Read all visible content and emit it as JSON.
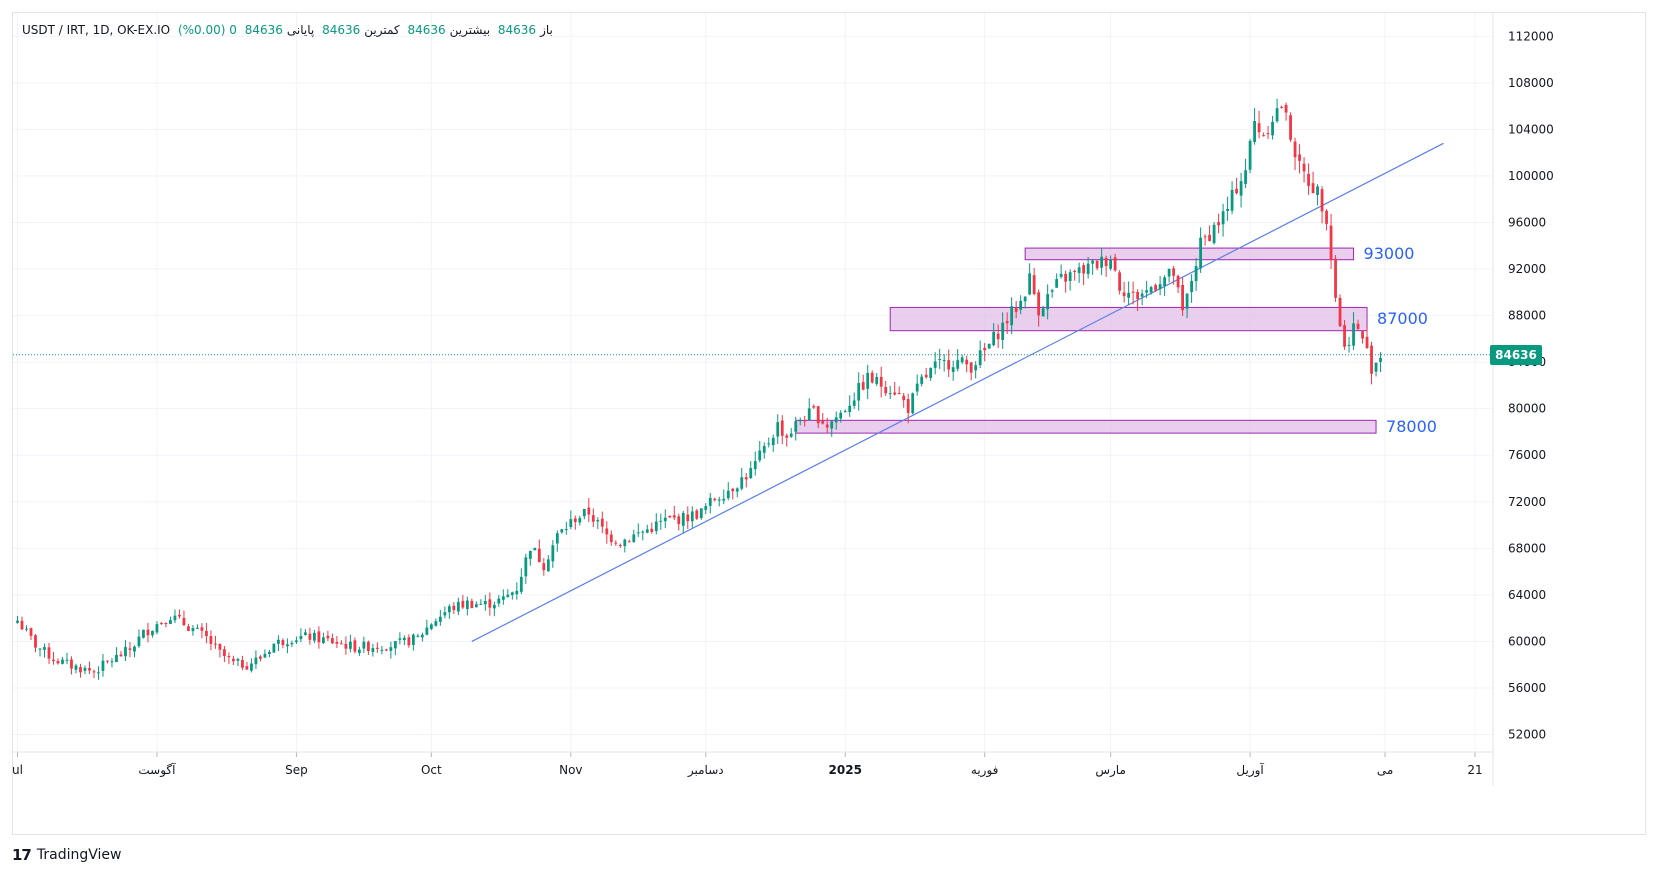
{
  "header": {
    "symbol": "USDT / IRT, 1D, OK-EX.IO",
    "open_label": "باز",
    "open_value": "84636",
    "high_label": "بیشترین",
    "high_value": "84636",
    "low_label": "کمترین",
    "low_value": "84636",
    "close_label": "پایانی",
    "close_value": "84636",
    "change": "0 (0.00%)"
  },
  "last_price_label": "84636",
  "brand": {
    "name": "TradingView"
  },
  "colors": {
    "up": "#089981",
    "down": "#f23645",
    "trend": "#5b7fe8",
    "zone_fill": "#e1bee7",
    "zone_border": "#9c27b0",
    "zone_label": "#2962ff"
  },
  "chart_data": {
    "type": "candlestick",
    "y_ticks": [
      52000,
      56000,
      60000,
      64000,
      68000,
      72000,
      76000,
      80000,
      84000,
      88000,
      92000,
      96000,
      100000,
      104000,
      108000,
      112000
    ],
    "y_tick_labels": [
      "52000",
      "56000",
      "60000",
      "64000",
      "68000",
      "72000",
      "76000",
      "80000",
      "84000",
      "88000",
      "92000",
      "96000",
      "100000",
      "104000",
      "108000",
      "112000"
    ],
    "x_ticks": [
      {
        "label": "ul",
        "day": 0
      },
      {
        "label": "آگوست",
        "day": 31
      },
      {
        "label": "Sep",
        "day": 62
      },
      {
        "label": "Oct",
        "day": 92
      },
      {
        "label": "Nov",
        "day": 123
      },
      {
        "label": "دسامبر",
        "day": 153
      },
      {
        "label": "2025",
        "day": 184,
        "bold": true
      },
      {
        "label": "فوریه",
        "day": 215
      },
      {
        "label": "مارس",
        "day": 243
      },
      {
        "label": "آوریل",
        "day": 274
      },
      {
        "label": "می",
        "day": 304
      },
      {
        "label": "21",
        "day": 324
      }
    ],
    "ylim": [
      50500,
      114000
    ],
    "xlim": [
      -1,
      328
    ],
    "last_price": 84636,
    "zones": [
      {
        "label": "93000",
        "from_day": 224,
        "to_day": 297,
        "low": 92800,
        "high": 93800
      },
      {
        "label": "87000",
        "from_day": 194,
        "to_day": 300,
        "low": 86700,
        "high": 88700
      },
      {
        "label": "78000",
        "from_day": 173,
        "to_day": 302,
        "low": 77900,
        "high": 79000
      }
    ],
    "trendline": {
      "from_day": 101,
      "from_price": 60000,
      "to_day": 317,
      "to_price": 102800
    },
    "anchors": [
      [
        0,
        61800
      ],
      [
        4,
        59700
      ],
      [
        8,
        58500
      ],
      [
        12,
        57900
      ],
      [
        17,
        57400
      ],
      [
        20,
        58200
      ],
      [
        25,
        59300
      ],
      [
        28,
        60700
      ],
      [
        31,
        61500
      ],
      [
        34,
        62200
      ],
      [
        38,
        61300
      ],
      [
        42,
        60300
      ],
      [
        45,
        59000
      ],
      [
        48,
        58100
      ],
      [
        51,
        58000
      ],
      [
        54,
        58600
      ],
      [
        57,
        59800
      ],
      [
        61,
        60300
      ],
      [
        65,
        60400
      ],
      [
        70,
        60000
      ],
      [
        75,
        59500
      ],
      [
        79,
        59600
      ],
      [
        84,
        59700
      ],
      [
        89,
        60300
      ],
      [
        92,
        61600
      ],
      [
        96,
        62800
      ],
      [
        100,
        63300
      ],
      [
        104,
        63200
      ],
      [
        108,
        63600
      ],
      [
        111,
        64600
      ],
      [
        114,
        68200
      ],
      [
        117,
        66600
      ],
      [
        120,
        69100
      ],
      [
        124,
        70600
      ],
      [
        127,
        71100
      ],
      [
        129,
        70100
      ],
      [
        131,
        69100
      ],
      [
        134,
        68600
      ],
      [
        137,
        69100
      ],
      [
        140,
        69600
      ],
      [
        144,
        70400
      ],
      [
        148,
        70600
      ],
      [
        152,
        71100
      ],
      [
        155,
        72300
      ],
      [
        159,
        73300
      ],
      [
        163,
        74600
      ],
      [
        166,
        76500
      ],
      [
        169,
        78600
      ],
      [
        171,
        77600
      ],
      [
        174,
        79100
      ],
      [
        177,
        79700
      ],
      [
        180,
        78600
      ],
      [
        183,
        79600
      ],
      [
        186,
        81100
      ],
      [
        189,
        82600
      ],
      [
        192,
        82100
      ],
      [
        195,
        81600
      ],
      [
        198,
        80100
      ],
      [
        201,
        82400
      ],
      [
        204,
        83600
      ],
      [
        208,
        84100
      ],
      [
        212,
        83700
      ],
      [
        215,
        84900
      ],
      [
        218,
        86600
      ],
      [
        221,
        88200
      ],
      [
        223,
        89200
      ],
      [
        225,
        91200
      ],
      [
        227,
        88600
      ],
      [
        229,
        89600
      ],
      [
        232,
        91100
      ],
      [
        235,
        91600
      ],
      [
        238,
        92100
      ],
      [
        241,
        92600
      ],
      [
        243,
        93100
      ],
      [
        245,
        90600
      ],
      [
        248,
        89600
      ],
      [
        251,
        90100
      ],
      [
        254,
        91100
      ],
      [
        257,
        91600
      ],
      [
        259,
        88100
      ],
      [
        261,
        91100
      ],
      [
        263,
        94100
      ],
      [
        266,
        95600
      ],
      [
        269,
        97100
      ],
      [
        271,
        99100
      ],
      [
        273,
        100600
      ],
      [
        275,
        104600
      ],
      [
        277,
        103600
      ],
      [
        279,
        105100
      ],
      [
        281,
        106100
      ],
      [
        283,
        103600
      ],
      [
        285,
        100600
      ],
      [
        287,
        99600
      ],
      [
        289,
        98600
      ],
      [
        291,
        96600
      ],
      [
        293,
        89600
      ],
      [
        295,
        85100
      ],
      [
        297,
        87100
      ],
      [
        299,
        86100
      ],
      [
        301,
        83600
      ],
      [
        303,
        84600
      ]
    ]
  }
}
